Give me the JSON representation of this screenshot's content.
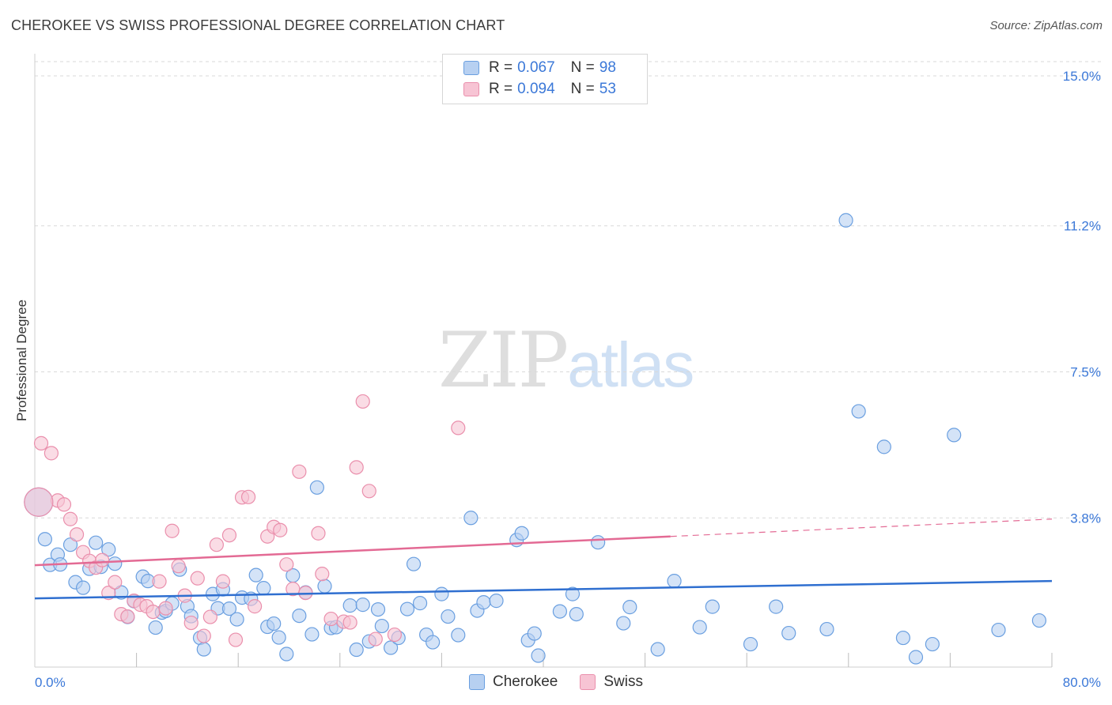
{
  "title": "CHEROKEE VS SWISS PROFESSIONAL DEGREE CORRELATION CHART",
  "source": "Source: ZipAtlas.com",
  "watermark": {
    "part1": "ZIP",
    "part2": "atlas"
  },
  "colors": {
    "cherokee_fill": "#b7d0f1",
    "cherokee_stroke": "#6a9fe0",
    "cherokee_line": "#2f6fd0",
    "swiss_fill": "#f7c4d4",
    "swiss_stroke": "#ea8fac",
    "swiss_line": "#e36a94",
    "value_text": "#3b78d8",
    "grid": "#d9d9d9"
  },
  "legend": {
    "rows": [
      {
        "r_label": "R =",
        "r_value": "0.067",
        "n_label": "N =",
        "n_value": "98"
      },
      {
        "r_label": "R =",
        "r_value": "0.094",
        "n_label": "N =",
        "n_value": "53"
      }
    ],
    "position": "top-center"
  },
  "bottom_legend": [
    "Cherokee",
    "Swiss"
  ],
  "chart_data": {
    "type": "scatter",
    "title": "CHEROKEE VS SWISS PROFESSIONAL DEGREE CORRELATION CHART",
    "ylabel": "Professional Degree",
    "xlabel": "",
    "xlim": [
      0,
      80
    ],
    "ylim": [
      0,
      15.5
    ],
    "x_tick_labels": [
      "0.0%",
      "80.0%"
    ],
    "y_ticks": [
      3.8,
      7.5,
      11.2,
      15.0
    ],
    "y_tick_labels": [
      "3.8%",
      "7.5%",
      "11.2%",
      "15.0%"
    ],
    "grid": true,
    "series": [
      {
        "name": "Cherokee",
        "r": 0.067,
        "n": 98,
        "trend": {
          "x": [
            0,
            80
          ],
          "y": [
            1.76,
            2.2
          ]
        },
        "points": [
          [
            0.8,
            3.26
          ],
          [
            1.2,
            2.61
          ],
          [
            1.8,
            2.87
          ],
          [
            2.0,
            2.62
          ],
          [
            2.8,
            3.12
          ],
          [
            3.2,
            2.17
          ],
          [
            3.8,
            2.03
          ],
          [
            4.3,
            2.51
          ],
          [
            4.8,
            3.17
          ],
          [
            5.2,
            2.56
          ],
          [
            5.8,
            3.0
          ],
          [
            6.3,
            2.64
          ],
          [
            6.8,
            1.91
          ],
          [
            7.3,
            1.29
          ],
          [
            7.8,
            1.69
          ],
          [
            8.5,
            2.31
          ],
          [
            8.9,
            2.2
          ],
          [
            9.5,
            1.02
          ],
          [
            10.0,
            1.4
          ],
          [
            10.3,
            1.44
          ],
          [
            10.8,
            1.63
          ],
          [
            11.4,
            2.49
          ],
          [
            12.0,
            1.56
          ],
          [
            12.3,
            1.31
          ],
          [
            13.0,
            0.76
          ],
          [
            13.3,
            0.47
          ],
          [
            14.0,
            1.87
          ],
          [
            14.4,
            1.51
          ],
          [
            14.8,
            1.99
          ],
          [
            15.3,
            1.5
          ],
          [
            15.9,
            1.23
          ],
          [
            16.3,
            1.78
          ],
          [
            17.0,
            1.75
          ],
          [
            17.4,
            2.35
          ],
          [
            18.0,
            2.02
          ],
          [
            18.3,
            1.04
          ],
          [
            18.8,
            1.12
          ],
          [
            19.2,
            0.77
          ],
          [
            19.8,
            0.35
          ],
          [
            20.3,
            2.34
          ],
          [
            20.8,
            1.32
          ],
          [
            21.3,
            1.91
          ],
          [
            21.8,
            0.85
          ],
          [
            22.2,
            4.57
          ],
          [
            22.8,
            2.07
          ],
          [
            23.3,
            1.01
          ],
          [
            23.7,
            1.03
          ],
          [
            24.8,
            1.58
          ],
          [
            25.3,
            0.46
          ],
          [
            25.8,
            1.6
          ],
          [
            26.3,
            0.67
          ],
          [
            27.0,
            1.48
          ],
          [
            27.3,
            1.06
          ],
          [
            28.0,
            0.51
          ],
          [
            28.6,
            0.76
          ],
          [
            29.3,
            1.49
          ],
          [
            29.8,
            2.63
          ],
          [
            30.3,
            1.64
          ],
          [
            30.8,
            0.84
          ],
          [
            31.3,
            0.65
          ],
          [
            32.0,
            1.87
          ],
          [
            32.5,
            1.3
          ],
          [
            33.3,
            0.83
          ],
          [
            34.3,
            3.8
          ],
          [
            34.8,
            1.45
          ],
          [
            35.3,
            1.66
          ],
          [
            36.3,
            1.7
          ],
          [
            37.9,
            3.24
          ],
          [
            38.3,
            3.41
          ],
          [
            38.8,
            0.7
          ],
          [
            39.3,
            0.87
          ],
          [
            39.6,
            0.31
          ],
          [
            41.3,
            1.43
          ],
          [
            42.3,
            1.87
          ],
          [
            42.6,
            1.36
          ],
          [
            44.3,
            3.18
          ],
          [
            46.3,
            1.13
          ],
          [
            46.8,
            1.54
          ],
          [
            49.0,
            0.47
          ],
          [
            50.3,
            2.2
          ],
          [
            52.3,
            1.03
          ],
          [
            53.3,
            1.55
          ],
          [
            56.3,
            0.6
          ],
          [
            58.3,
            1.55
          ],
          [
            59.3,
            0.88
          ],
          [
            62.3,
            0.98
          ],
          [
            63.8,
            11.34
          ],
          [
            64.8,
            6.5
          ],
          [
            66.8,
            5.6
          ],
          [
            68.3,
            0.76
          ],
          [
            69.3,
            0.27
          ],
          [
            70.6,
            0.6
          ],
          [
            72.3,
            5.9
          ],
          [
            75.8,
            0.96
          ],
          [
            79.0,
            1.2
          ],
          [
            0.3,
            4.2
          ]
        ]
      },
      {
        "name": "Swiss",
        "r": 0.094,
        "n": 53,
        "trend": {
          "x": [
            0,
            50
          ],
          "y": [
            2.6,
            3.33
          ]
        },
        "trend_dashed": {
          "x": [
            50,
            80
          ],
          "y": [
            3.33,
            3.77
          ]
        },
        "points": [
          [
            0.5,
            5.69
          ],
          [
            1.3,
            5.44
          ],
          [
            1.8,
            4.24
          ],
          [
            2.3,
            4.14
          ],
          [
            2.8,
            3.77
          ],
          [
            3.3,
            3.38
          ],
          [
            3.8,
            2.93
          ],
          [
            4.3,
            2.71
          ],
          [
            4.8,
            2.54
          ],
          [
            5.3,
            2.73
          ],
          [
            5.8,
            1.9
          ],
          [
            6.3,
            2.17
          ],
          [
            6.8,
            1.36
          ],
          [
            7.3,
            1.3
          ],
          [
            7.8,
            1.7
          ],
          [
            8.3,
            1.6
          ],
          [
            8.8,
            1.56
          ],
          [
            9.3,
            1.42
          ],
          [
            9.8,
            2.19
          ],
          [
            10.3,
            1.51
          ],
          [
            10.8,
            3.47
          ],
          [
            11.3,
            2.58
          ],
          [
            11.8,
            1.83
          ],
          [
            12.3,
            1.14
          ],
          [
            12.8,
            2.27
          ],
          [
            13.3,
            0.81
          ],
          [
            13.8,
            1.29
          ],
          [
            14.3,
            3.12
          ],
          [
            14.8,
            2.19
          ],
          [
            15.3,
            3.36
          ],
          [
            15.8,
            0.71
          ],
          [
            16.3,
            4.32
          ],
          [
            16.8,
            4.33
          ],
          [
            17.3,
            1.56
          ],
          [
            18.3,
            3.33
          ],
          [
            18.8,
            3.57
          ],
          [
            19.3,
            3.49
          ],
          [
            19.8,
            2.62
          ],
          [
            20.3,
            2.0
          ],
          [
            20.8,
            4.97
          ],
          [
            21.3,
            1.9
          ],
          [
            22.3,
            3.41
          ],
          [
            22.6,
            2.38
          ],
          [
            23.3,
            1.24
          ],
          [
            24.3,
            1.17
          ],
          [
            24.8,
            1.15
          ],
          [
            25.3,
            5.08
          ],
          [
            25.8,
            6.75
          ],
          [
            26.3,
            4.48
          ],
          [
            26.8,
            0.73
          ],
          [
            28.3,
            0.84
          ],
          [
            33.3,
            6.08
          ],
          [
            0.3,
            4.2
          ]
        ]
      }
    ]
  }
}
